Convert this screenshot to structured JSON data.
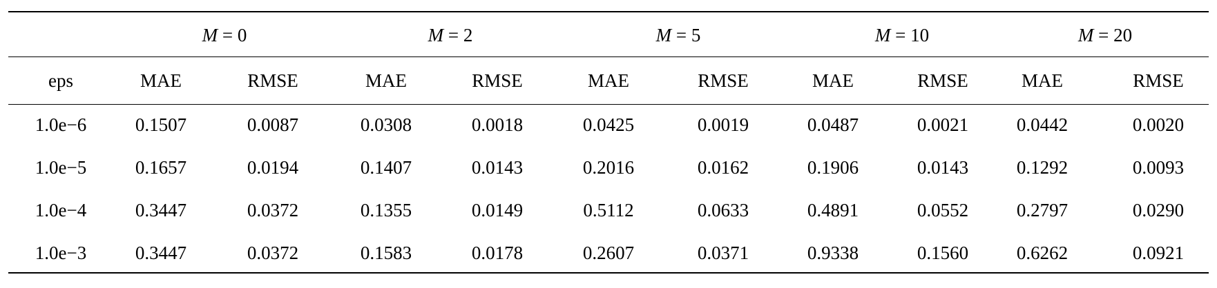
{
  "table": {
    "groups": [
      {
        "var": "M",
        "eq": " = ",
        "value": "0"
      },
      {
        "var": "M",
        "eq": " = ",
        "value": "2"
      },
      {
        "var": "M",
        "eq": " = ",
        "value": "5"
      },
      {
        "var": "M",
        "eq": " = ",
        "value": "10"
      },
      {
        "var": "M",
        "eq": " = ",
        "value": "20"
      }
    ],
    "columns": [
      "eps",
      "MAE",
      "RMSE",
      "MAE",
      "RMSE",
      "MAE",
      "RMSE",
      "MAE",
      "RMSE",
      "MAE",
      "RMSE"
    ],
    "rows": [
      [
        "1.0e−6",
        "0.1507",
        "0.0087",
        "0.0308",
        "0.0018",
        "0.0425",
        "0.0019",
        "0.0487",
        "0.0021",
        "0.0442",
        "0.0020"
      ],
      [
        "1.0e−5",
        "0.1657",
        "0.0194",
        "0.1407",
        "0.0143",
        "0.2016",
        "0.0162",
        "0.1906",
        "0.0143",
        "0.1292",
        "0.0093"
      ],
      [
        "1.0e−4",
        "0.3447",
        "0.0372",
        "0.1355",
        "0.0149",
        "0.5112",
        "0.0633",
        "0.4891",
        "0.0552",
        "0.2797",
        "0.0290"
      ],
      [
        "1.0e−3",
        "0.3447",
        "0.0372",
        "0.1583",
        "0.0178",
        "0.2607",
        "0.0371",
        "0.9338",
        "0.1560",
        "0.6262",
        "0.0921"
      ]
    ]
  }
}
